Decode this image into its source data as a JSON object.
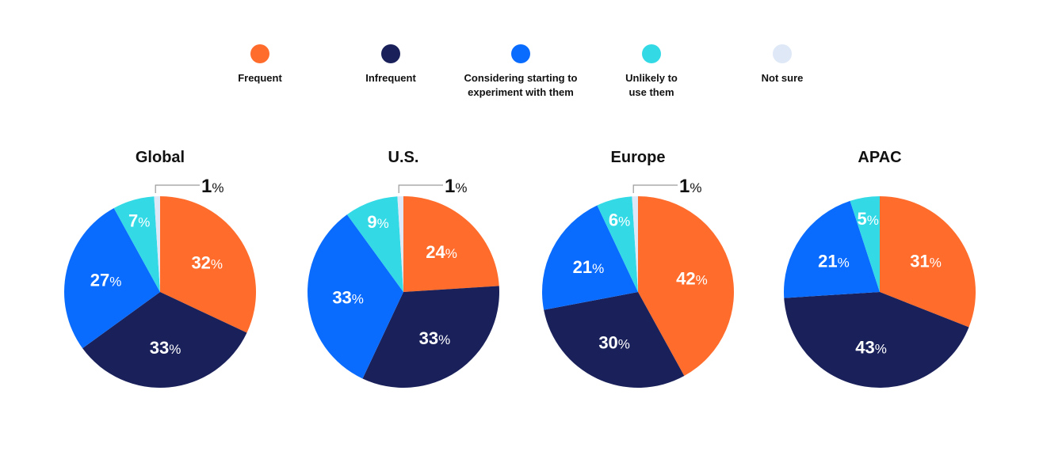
{
  "legend": [
    {
      "label": "Frequent",
      "color": "#FF6C2C"
    },
    {
      "label": "Infrequent",
      "color": "#19205A"
    },
    {
      "label": "Considering starting to experiment with them",
      "color": "#0A6CFF"
    },
    {
      "label": "Unlikely to use them",
      "color": "#33DAE6"
    },
    {
      "label": "Not sure",
      "color": "#DFE8F7"
    }
  ],
  "chart_data": [
    {
      "type": "pie",
      "title": "Global",
      "categories": [
        "Frequent",
        "Infrequent",
        "Considering starting to experiment with them",
        "Unlikely to use them",
        "Not sure"
      ],
      "values": [
        32,
        33,
        27,
        7,
        1
      ],
      "labels": [
        "32%",
        "33%",
        "27%",
        "7%",
        "1%"
      ]
    },
    {
      "type": "pie",
      "title": "U.S.",
      "categories": [
        "Frequent",
        "Infrequent",
        "Considering starting to experiment with them",
        "Unlikely to use them",
        "Not sure"
      ],
      "values": [
        24,
        33,
        33,
        9,
        1
      ],
      "labels": [
        "24%",
        "33%",
        "33%",
        "9%",
        "1%"
      ]
    },
    {
      "type": "pie",
      "title": "Europe",
      "categories": [
        "Frequent",
        "Infrequent",
        "Considering starting to experiment with them",
        "Unlikely to use them",
        "Not sure"
      ],
      "values": [
        42,
        30,
        21,
        6,
        1
      ],
      "labels": [
        "42%",
        "30%",
        "21%",
        "6%",
        "1%"
      ]
    },
    {
      "type": "pie",
      "title": "APAC",
      "categories": [
        "Frequent",
        "Infrequent",
        "Considering starting to experiment with them",
        "Unlikely to use them",
        "Not sure"
      ],
      "values": [
        31,
        43,
        21,
        5,
        0
      ],
      "labels": [
        "31%",
        "43%",
        "21%",
        "5%",
        ""
      ]
    }
  ]
}
